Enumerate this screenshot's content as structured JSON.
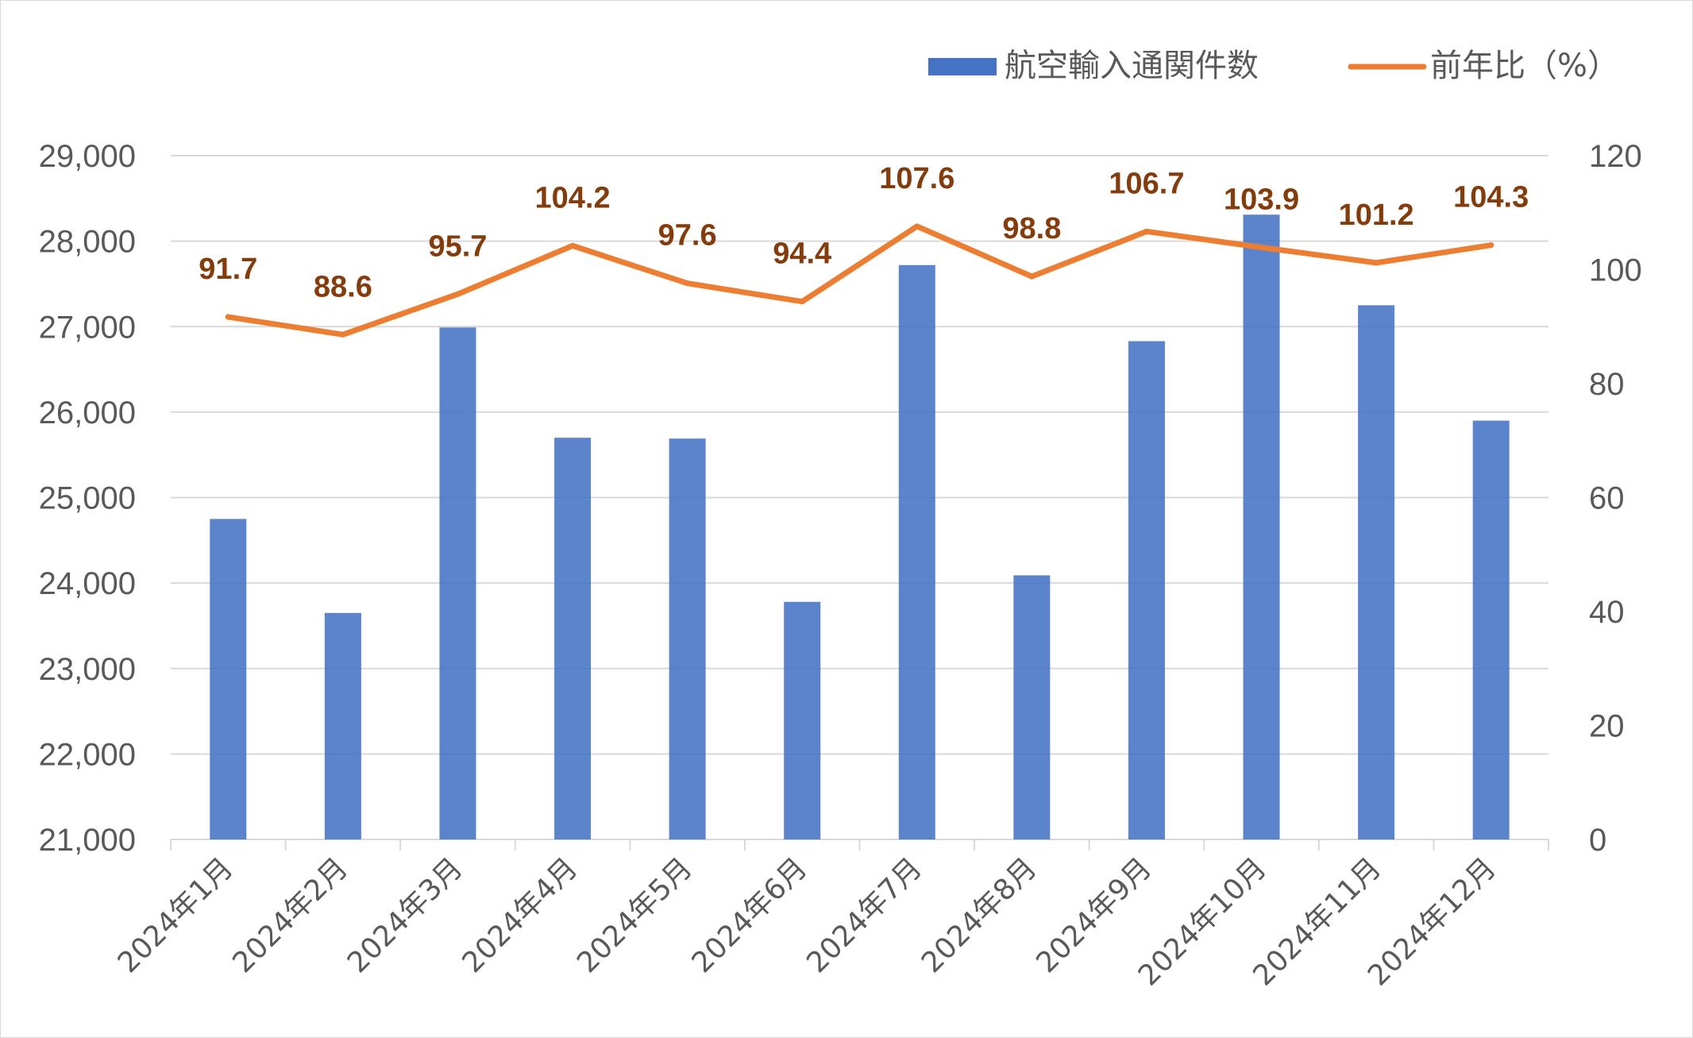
{
  "chart_data": {
    "type": "bar",
    "categories": [
      "2024年1月",
      "2024年2月",
      "2024年3月",
      "2024年4月",
      "2024年5月",
      "2024年6月",
      "2024年7月",
      "2024年8月",
      "2024年9月",
      "2024年10月",
      "2024年11月",
      "2024年12月"
    ],
    "series": [
      {
        "name": "航空輸入通関件数",
        "type": "bar",
        "axis": "left",
        "color": "#4472c4",
        "values": [
          24750,
          23650,
          26990,
          25700,
          25690,
          23780,
          27720,
          24090,
          26830,
          28310,
          27250,
          25900
        ]
      },
      {
        "name": "前年比（%）",
        "type": "line",
        "axis": "right",
        "color": "#ed7d31",
        "label_color": "#843c0c",
        "values": [
          91.7,
          88.6,
          95.7,
          104.2,
          97.6,
          94.4,
          107.6,
          98.8,
          106.7,
          103.9,
          101.2,
          104.3
        ],
        "labels": [
          "91.7",
          "88.6",
          "95.7",
          "104.2",
          "97.6",
          "94.4",
          "107.6",
          "98.8",
          "106.7",
          "103.9",
          "101.2",
          "104.3"
        ]
      }
    ],
    "y_left": {
      "min": 21000,
      "max": 29000,
      "ticks": [
        21000,
        22000,
        23000,
        24000,
        25000,
        26000,
        27000,
        28000,
        29000
      ],
      "tick_labels": [
        "21,000",
        "22,000",
        "23,000",
        "24,000",
        "25,000",
        "26,000",
        "27,000",
        "28,000",
        "29,000"
      ]
    },
    "y_right": {
      "min": 0,
      "max": 120,
      "ticks": [
        0,
        20,
        40,
        60,
        80,
        100,
        120
      ],
      "tick_labels": [
        "0",
        "20",
        "40",
        "60",
        "80",
        "100",
        "120"
      ]
    },
    "grid": true,
    "legend_position": "top-right",
    "title": "",
    "xlabel": "",
    "ylabel": ""
  }
}
